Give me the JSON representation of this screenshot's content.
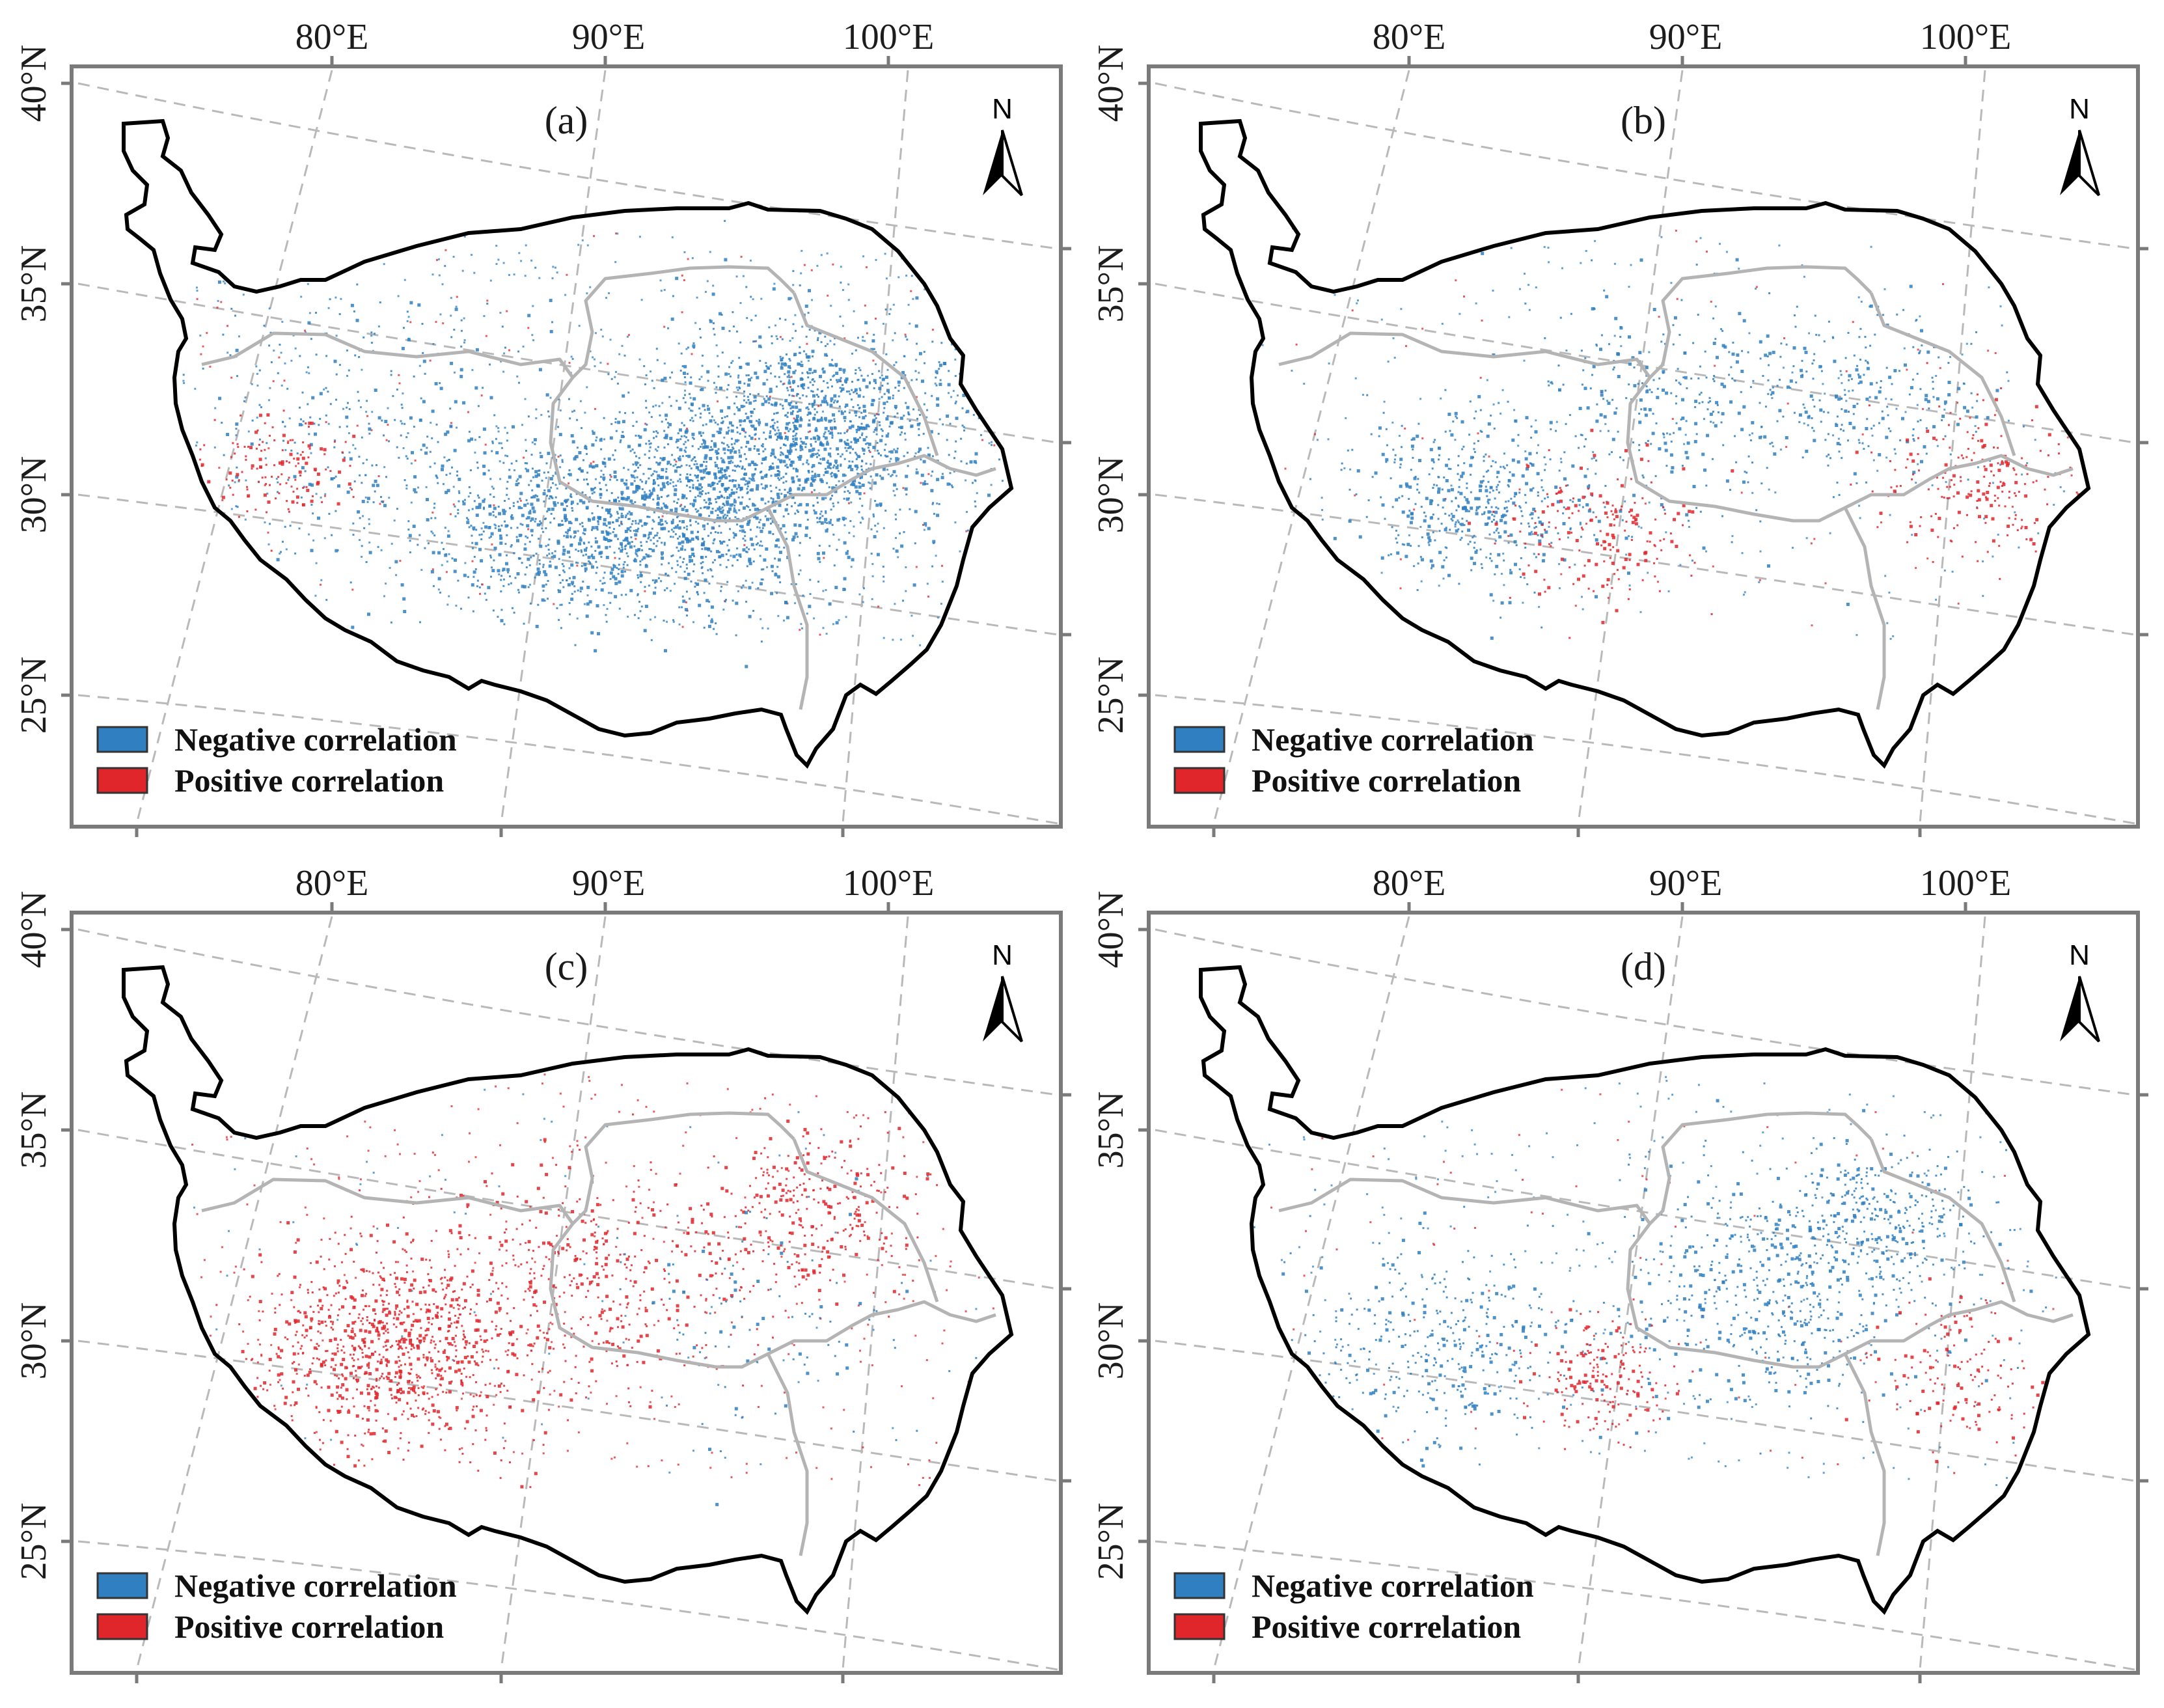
{
  "figure": {
    "colors": {
      "negative": "#2f7fc1",
      "positive": "#e0262b",
      "boundary": "#000000",
      "admin_lines": "#b4b4b4",
      "grid": "#b9b9b9",
      "frame": "#7a7a7a"
    },
    "lon_labels": [
      "80°E",
      "90°E",
      "100°E"
    ],
    "lat_labels": [
      "40°N",
      "35°N",
      "30°N",
      "25°N"
    ],
    "north_arrow": {
      "letter": "N",
      "icon": "north-arrow-icon"
    },
    "legend": {
      "negative_label": "Negative correlation",
      "positive_label": "Positive correlation"
    },
    "panels": [
      {
        "label": "(a)",
        "dominant": "negative",
        "hotspots": [
          {
            "lon": 96.5,
            "lat": 32.0,
            "spread_deg": 4.0,
            "share": 0.35,
            "sign": "negative"
          },
          {
            "lon": 93.0,
            "lat": 30.0,
            "spread_deg": 3.5,
            "share": 0.3,
            "sign": "negative"
          },
          {
            "lon": 89.0,
            "lat": 29.0,
            "spread_deg": 3.0,
            "share": 0.15,
            "sign": "negative"
          },
          {
            "lon": 84.0,
            "lat": 31.0,
            "spread_deg": 5.0,
            "share": 0.1,
            "sign": "negative"
          },
          {
            "lon": 81.0,
            "lat": 30.0,
            "spread_deg": 2.0,
            "share": 0.04,
            "sign": "positive"
          }
        ],
        "density": 0.7
      },
      {
        "label": "(b)",
        "dominant": "mixed",
        "hotspots": [
          {
            "lon": 84.5,
            "lat": 29.5,
            "spread_deg": 3.0,
            "share": 0.3,
            "sign": "negative"
          },
          {
            "lon": 90.0,
            "lat": 32.0,
            "spread_deg": 4.0,
            "share": 0.2,
            "sign": "negative"
          },
          {
            "lon": 95.5,
            "lat": 33.0,
            "spread_deg": 3.0,
            "share": 0.15,
            "sign": "negative"
          },
          {
            "lon": 88.5,
            "lat": 29.0,
            "spread_deg": 2.5,
            "share": 0.12,
            "sign": "positive"
          },
          {
            "lon": 99.0,
            "lat": 31.0,
            "spread_deg": 2.5,
            "share": 0.13,
            "sign": "positive"
          }
        ],
        "density": 0.3
      },
      {
        "label": "(c)",
        "dominant": "positive",
        "hotspots": [
          {
            "lon": 84.5,
            "lat": 29.5,
            "spread_deg": 3.5,
            "share": 0.45,
            "sign": "positive"
          },
          {
            "lon": 90.0,
            "lat": 31.5,
            "spread_deg": 4.0,
            "share": 0.2,
            "sign": "positive"
          },
          {
            "lon": 96.0,
            "lat": 33.5,
            "spread_deg": 3.0,
            "share": 0.15,
            "sign": "positive"
          },
          {
            "lon": 95.0,
            "lat": 31.0,
            "spread_deg": 4.0,
            "share": 0.05,
            "sign": "negative"
          }
        ],
        "density": 0.4
      },
      {
        "label": "(d)",
        "dominant": "negative",
        "hotspots": [
          {
            "lon": 93.0,
            "lat": 31.5,
            "spread_deg": 4.0,
            "share": 0.3,
            "sign": "negative"
          },
          {
            "lon": 96.0,
            "lat": 33.5,
            "spread_deg": 2.5,
            "share": 0.15,
            "sign": "negative"
          },
          {
            "lon": 83.5,
            "lat": 29.5,
            "spread_deg": 3.5,
            "share": 0.2,
            "sign": "negative"
          },
          {
            "lon": 88.5,
            "lat": 29.0,
            "spread_deg": 2.0,
            "share": 0.1,
            "sign": "positive"
          },
          {
            "lon": 98.5,
            "lat": 30.0,
            "spread_deg": 2.5,
            "share": 0.08,
            "sign": "positive"
          }
        ],
        "density": 0.35
      }
    ]
  }
}
